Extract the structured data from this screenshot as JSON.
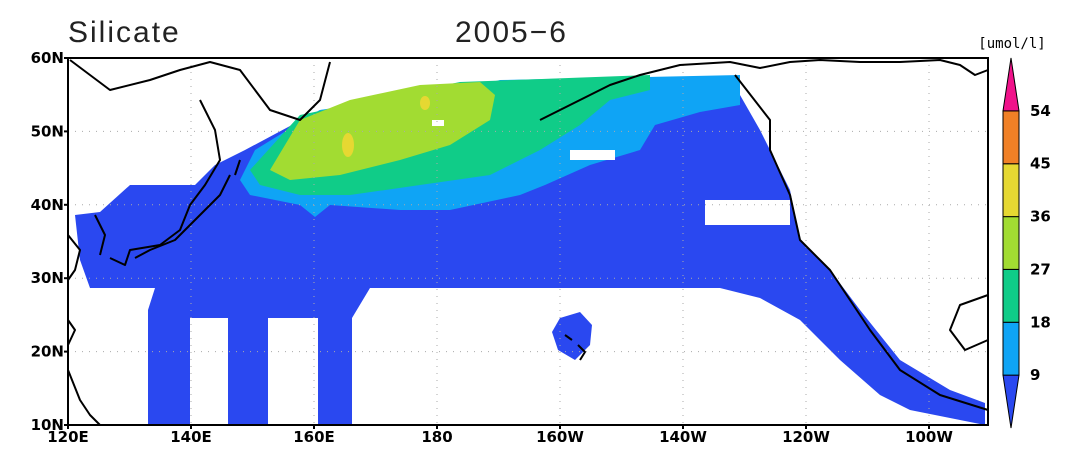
{
  "title": "Silicate",
  "date": "2005−6",
  "units": "[umol/l]",
  "lat_labels": [
    "60N",
    "50N",
    "40N",
    "30N",
    "20N",
    "10N"
  ],
  "lon_labels": [
    "120E",
    "140E",
    "160E",
    "180",
    "160W",
    "140W",
    "120W",
    "100W"
  ],
  "colorbar": {
    "levels": [
      9,
      18,
      27,
      36,
      45,
      54
    ],
    "colors": [
      "#2a48f0",
      "#0fa4f5",
      "#10cc88",
      "#a2dc32",
      "#e6d832",
      "#f08026",
      "#f0128a"
    ]
  }
}
